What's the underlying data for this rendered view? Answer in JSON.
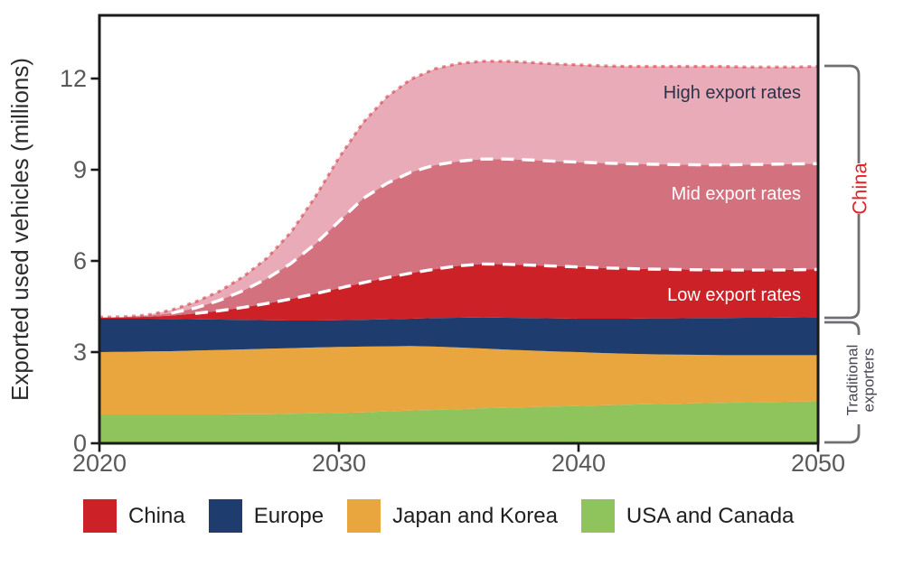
{
  "chart_data": {
    "type": "area",
    "title": "",
    "ylabel": "Exported used vehicles (millions)",
    "xlabel": "",
    "xlim": [
      2020,
      2050
    ],
    "ylim": [
      0,
      14.08
    ],
    "x_ticks": [
      2020,
      2030,
      2040,
      2050
    ],
    "y_ticks": [
      0,
      3,
      6,
      9,
      12
    ],
    "grid": false,
    "x": [
      2020,
      2021,
      2022,
      2023,
      2024,
      2025,
      2026,
      2027,
      2028,
      2029,
      2030,
      2031,
      2032,
      2033,
      2034,
      2035,
      2036,
      2037,
      2038,
      2039,
      2040,
      2041,
      2042,
      2043,
      2044,
      2045,
      2046,
      2047,
      2048,
      2049,
      2050
    ],
    "series": [
      {
        "id": "usa-canada",
        "name": "USA and Canada",
        "color": "#8fc45c",
        "values": [
          0.95,
          0.95,
          0.95,
          0.95,
          0.95,
          0.95,
          0.96,
          0.96,
          0.97,
          0.99,
          1.0,
          1.02,
          1.05,
          1.08,
          1.1,
          1.12,
          1.15,
          1.17,
          1.19,
          1.21,
          1.23,
          1.25,
          1.27,
          1.29,
          1.3,
          1.32,
          1.33,
          1.35,
          1.36,
          1.37,
          1.38
        ]
      },
      {
        "id": "japan-korea",
        "name": "Japan and Korea",
        "color": "#e9a63e",
        "values": [
          2.05,
          2.06,
          2.07,
          2.08,
          2.1,
          2.12,
          2.13,
          2.15,
          2.16,
          2.16,
          2.17,
          2.16,
          2.14,
          2.12,
          2.08,
          2.03,
          1.97,
          1.91,
          1.86,
          1.81,
          1.77,
          1.72,
          1.68,
          1.64,
          1.62,
          1.59,
          1.57,
          1.55,
          1.54,
          1.53,
          1.52
        ]
      },
      {
        "id": "europe",
        "name": "Europe",
        "color": "#1e3d6e",
        "values": [
          1.1,
          1.09,
          1.08,
          1.06,
          1.03,
          1.0,
          0.97,
          0.94,
          0.91,
          0.89,
          0.88,
          0.88,
          0.89,
          0.9,
          0.94,
          0.98,
          1.02,
          1.05,
          1.07,
          1.09,
          1.1,
          1.13,
          1.15,
          1.18,
          1.19,
          1.21,
          1.22,
          1.23,
          1.23,
          1.24,
          1.25
        ]
      },
      {
        "id": "china-low",
        "name": "China (low export rates)",
        "color": "#cd2128",
        "values": [
          0.03,
          0.04,
          0.06,
          0.11,
          0.19,
          0.29,
          0.41,
          0.55,
          0.71,
          0.88,
          1.05,
          1.22,
          1.37,
          1.5,
          1.61,
          1.71,
          1.76,
          1.76,
          1.74,
          1.72,
          1.7,
          1.67,
          1.65,
          1.62,
          1.61,
          1.59,
          1.58,
          1.57,
          1.57,
          1.57,
          1.57
        ]
      },
      {
        "id": "china-mid",
        "name": "China (mid export rates, additional)",
        "color": "#d4717f",
        "values": [
          0.0,
          0.01,
          0.03,
          0.08,
          0.18,
          0.34,
          0.55,
          0.82,
          1.17,
          1.63,
          2.2,
          2.77,
          3.1,
          3.32,
          3.42,
          3.44,
          3.45,
          3.46,
          3.46,
          3.45,
          3.45,
          3.45,
          3.45,
          3.45,
          3.45,
          3.45,
          3.46,
          3.47,
          3.48,
          3.48,
          3.48
        ]
      },
      {
        "id": "china-high",
        "name": "China (high export rates, additional)",
        "color": "#e8abb7",
        "values": [
          0.02,
          0.01,
          0.03,
          0.1,
          0.2,
          0.3,
          0.46,
          0.68,
          1.03,
          1.55,
          2.1,
          2.5,
          2.85,
          3.06,
          3.17,
          3.22,
          3.22,
          3.22,
          3.21,
          3.2,
          3.2,
          3.2,
          3.2,
          3.22,
          3.23,
          3.24,
          3.24,
          3.21,
          3.2,
          3.19,
          3.2
        ]
      }
    ],
    "boundary_lines": [
      {
        "id": "low",
        "series_index": 3,
        "style": "dashed",
        "color": "#ffffff",
        "width": 3.4,
        "dash": "14 9",
        "start_year": 2023.5
      },
      {
        "id": "mid",
        "series_index": 4,
        "style": "dashed",
        "color": "#ffffff",
        "width": 3.4,
        "dash": "14 9",
        "start_year": 2023
      },
      {
        "id": "high",
        "series_index": 5,
        "style": "dotted",
        "color": "rgba(204,32,40,0.5)",
        "width": 3.2,
        "dash": "4 5",
        "start_year": 2020
      }
    ],
    "annotations": {
      "high": "High export rates",
      "mid": "Mid export rates",
      "low": "Low export rates"
    },
    "brackets": [
      {
        "label": "China",
        "color": "#e02329",
        "from_value": 12.4,
        "to_value": 4.15
      },
      {
        "label_line1": "Traditional",
        "label_line2": "exporters",
        "color": "#474753",
        "from_value": 4.15,
        "to_value": 0
      }
    ],
    "legend": [
      {
        "id": "china",
        "label": "China",
        "color": "#cd2128"
      },
      {
        "id": "europe",
        "label": "Europe",
        "color": "#1e3d6e"
      },
      {
        "id": "japan-korea",
        "label": "Japan and Korea",
        "color": "#e9a63e"
      },
      {
        "id": "usa-canada",
        "label": "USA and Canada",
        "color": "#8fc45c"
      }
    ]
  },
  "colors": {
    "axis": "#1a1a1a",
    "tick_text": "#59595c",
    "bracket": "#6e6f73"
  }
}
